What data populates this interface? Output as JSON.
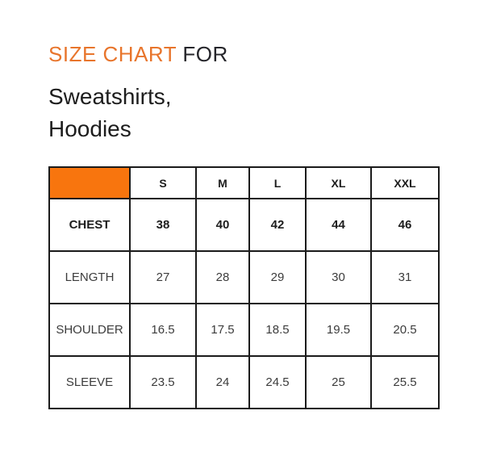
{
  "colors": {
    "title_accent_orange": "#e8752c",
    "corner_cell_orange": "#f8750e",
    "border_dark": "#1b1b1b",
    "background": "#ffffff"
  },
  "header": {
    "title_highlight": "SIZE CHART",
    "title_rest": " FOR",
    "subtitle_line1": "Sweatshirts,",
    "subtitle_line2": "Hoodies"
  },
  "size_table": {
    "corner_label": "",
    "columns": [
      "S",
      "M",
      "L",
      "XL",
      "XXL"
    ],
    "rows": [
      {
        "label": "CHEST",
        "values": [
          "38",
          "40",
          "42",
          "44",
          "46"
        ]
      },
      {
        "label": "LENGTH",
        "values": [
          "27",
          "28",
          "29",
          "30",
          "31"
        ]
      },
      {
        "label": "SHOULDER",
        "values": [
          "16.5",
          "17.5",
          "18.5",
          "19.5",
          "20.5"
        ]
      },
      {
        "label": "SLEEVE",
        "values": [
          "23.5",
          "24",
          "24.5",
          "25",
          "25.5"
        ]
      }
    ]
  },
  "chart_data": {
    "type": "table",
    "title": "SIZE CHART FOR Sweatshirts, Hoodies",
    "columns": [
      "",
      "S",
      "M",
      "L",
      "XL",
      "XXL"
    ],
    "rows": [
      [
        "CHEST",
        38,
        40,
        42,
        44,
        46
      ],
      [
        "LENGTH",
        27,
        28,
        29,
        30,
        31
      ],
      [
        "SHOULDER",
        16.5,
        17.5,
        18.5,
        19.5,
        20.5
      ],
      [
        "SLEEVE",
        23.5,
        24,
        24.5,
        25,
        25.5
      ]
    ]
  }
}
